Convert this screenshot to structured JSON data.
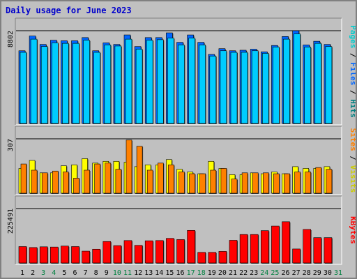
{
  "title": "Daily usage for June 2023",
  "colors": {
    "background": "#c0c0c0",
    "title": "#0000cc",
    "weekend": "#008040",
    "weekday": "#000000",
    "hits": "#00ccff",
    "files": "#0066ff",
    "pages": "#00cccc",
    "visits": "#ffff00",
    "sites": "#ff8000",
    "kbytes": "#ff0000"
  },
  "legend": {
    "top": [
      {
        "text": "Pages",
        "color": "#00cccc"
      },
      {
        "text": " / ",
        "color": "#000000"
      },
      {
        "text": "Files",
        "color": "#0066ff"
      },
      {
        "text": " / ",
        "color": "#000000"
      },
      {
        "text": "Hits",
        "color": "#008080"
      }
    ],
    "middle": [
      {
        "text": "Sites",
        "color": "#ff8000"
      },
      {
        "text": " / ",
        "color": "#000000"
      },
      {
        "text": "Visits",
        "color": "#cccc00"
      }
    ],
    "bottom": [
      {
        "text": "KBytes",
        "color": "#ff0000"
      }
    ]
  },
  "chart_data": [
    {
      "type": "bar",
      "title": "Daily usage for June 2023",
      "x": [
        "1",
        "2",
        "3",
        "4",
        "5",
        "6",
        "7",
        "8",
        "9",
        "10",
        "11",
        "12",
        "13",
        "14",
        "15",
        "16",
        "17",
        "18",
        "19",
        "20",
        "21",
        "22",
        "23",
        "24",
        "25",
        "26",
        "27",
        "28",
        "29",
        "30",
        "31"
      ],
      "x_colors": [
        "#000000",
        "#000000",
        "#008040",
        "#008040",
        "#000000",
        "#000000",
        "#000000",
        "#000000",
        "#000000",
        "#008040",
        "#008040",
        "#000000",
        "#000000",
        "#000000",
        "#000000",
        "#000000",
        "#008040",
        "#008040",
        "#000000",
        "#000000",
        "#000000",
        "#000000",
        "#000000",
        "#008040",
        "#008040",
        "#000000",
        "#000000",
        "#000000",
        "#000000",
        "#000000",
        "#008040"
      ],
      "ylim": [
        0,
        8802
      ],
      "yticks": [
        "8802"
      ],
      "series": [
        {
          "name": "Hits",
          "values": [
            6900,
            8300,
            7500,
            7900,
            7850,
            7850,
            8150,
            6900,
            7650,
            7500,
            8402,
            7300,
            8150,
            8150,
            8600,
            7700,
            8400,
            7700,
            6550,
            7100,
            6900,
            6950,
            7050,
            6800,
            7400,
            8250,
            8802,
            7450,
            7800,
            7500,
            null
          ]
        },
        {
          "name": "Files",
          "values": [
            6750,
            8000,
            7300,
            7650,
            7600,
            7600,
            7900,
            6750,
            7450,
            7350,
            8000,
            7050,
            7900,
            7950,
            8100,
            7450,
            8100,
            7450,
            6400,
            6900,
            6750,
            6750,
            6900,
            6650,
            7250,
            8000,
            8500,
            7250,
            7600,
            7300,
            null
          ]
        }
      ]
    },
    {
      "type": "bar",
      "ylim": [
        0,
        307
      ],
      "yticks": [
        "307"
      ],
      "series": [
        {
          "name": "Visits",
          "values": [
            140,
            185,
            115,
            115,
            155,
            160,
            195,
            170,
            180,
            180,
            175,
            150,
            160,
            160,
            190,
            135,
            120,
            110,
            180,
            140,
            105,
            105,
            115,
            110,
            120,
            110,
            150,
            140,
            140,
            150,
            null
          ]
        },
        {
          "name": "Sites",
          "values": [
            165,
            130,
            115,
            125,
            120,
            85,
            130,
            165,
            170,
            135,
            300,
            265,
            130,
            170,
            160,
            120,
            110,
            110,
            130,
            140,
            80,
            115,
            115,
            115,
            110,
            110,
            120,
            120,
            145,
            135,
            null
          ]
        }
      ]
    },
    {
      "type": "bar",
      "ylim": [
        0,
        225491
      ],
      "yticks": [
        "225491"
      ],
      "series": [
        {
          "name": "KBytes",
          "values": [
            68000,
            64000,
            67000,
            66000,
            70000,
            68000,
            49000,
            57000,
            89000,
            72000,
            93000,
            73000,
            92000,
            93000,
            102000,
            97000,
            135000,
            44000,
            44000,
            48000,
            94000,
            118000,
            118000,
            134000,
            153000,
            171000,
            58000,
            139000,
            105000,
            105000,
            null
          ]
        }
      ]
    }
  ]
}
